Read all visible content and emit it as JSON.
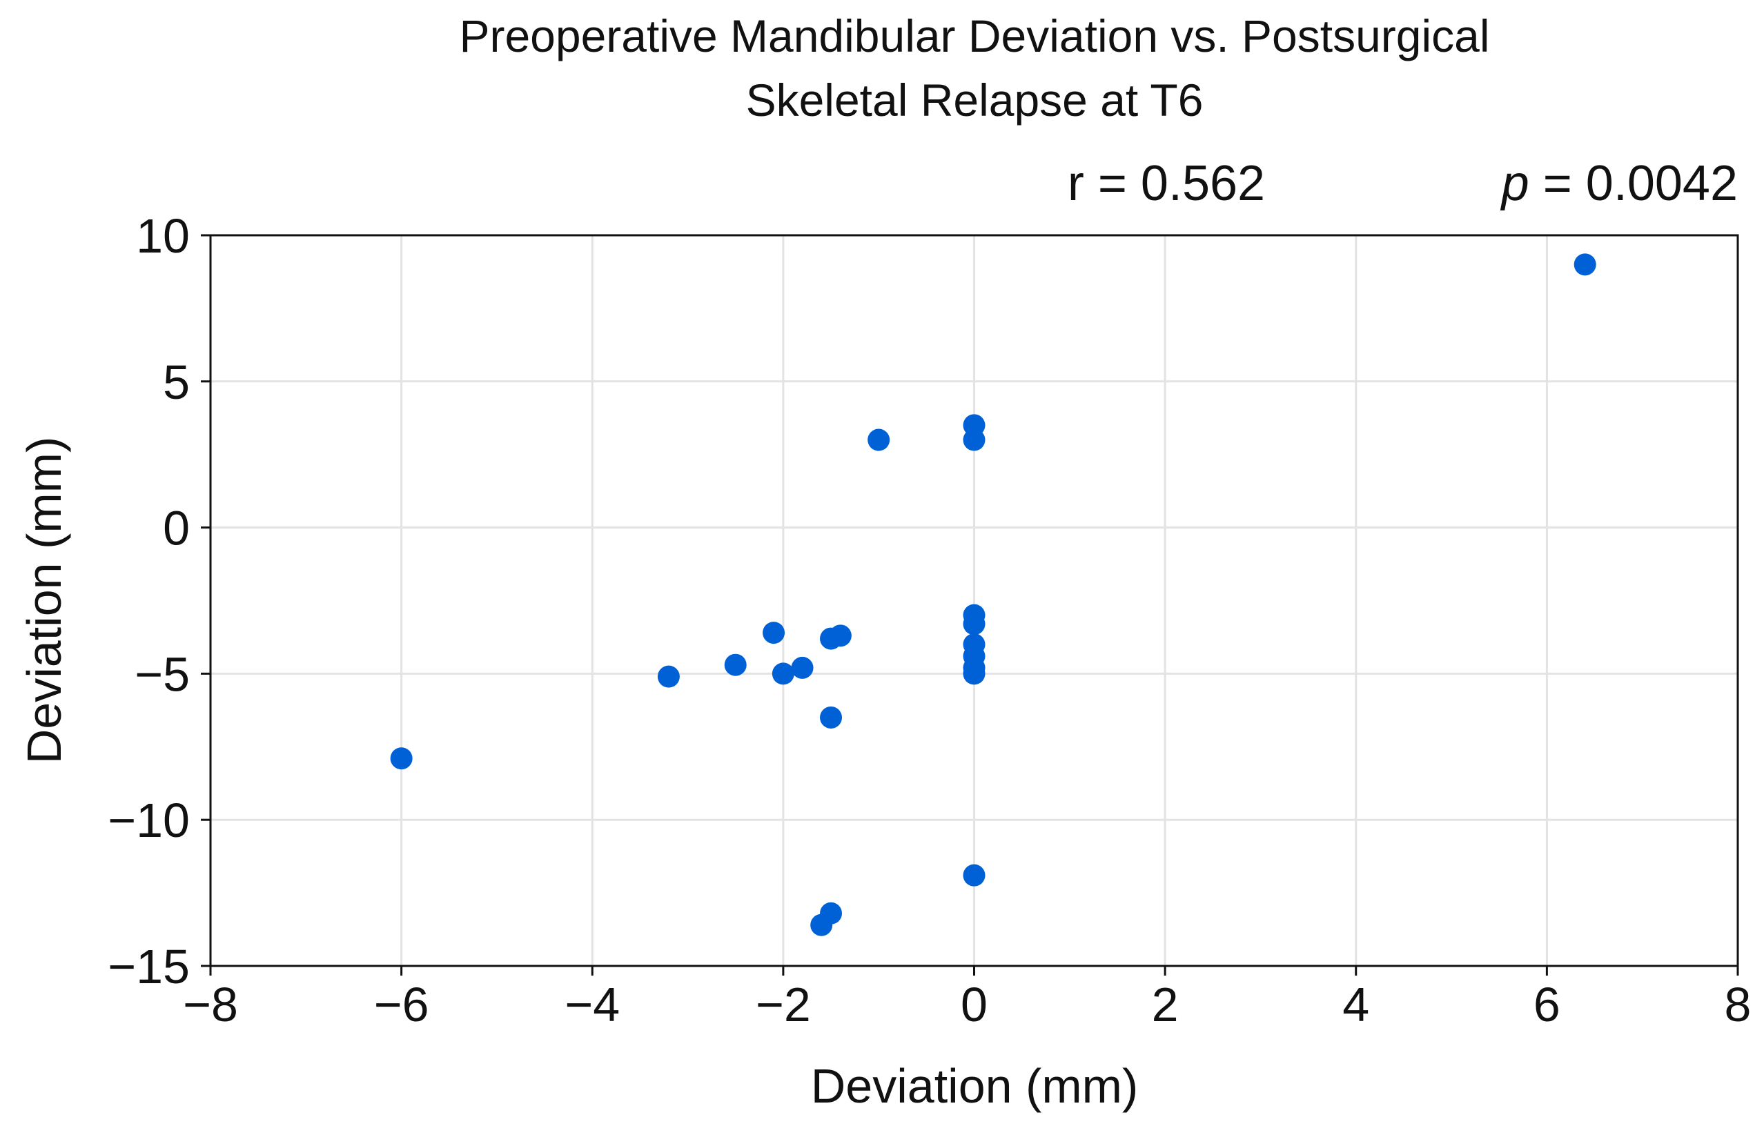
{
  "chart_data": {
    "type": "scatter",
    "title_lines": [
      "Preoperative Mandibular Deviation vs. Postsurgical",
      "Skeletal Relapse at T6"
    ],
    "annotations": {
      "r_label": "r = 0.562",
      "p_symbol": "p",
      "p_value": " = 0.0042"
    },
    "xlabel": "Deviation (mm)",
    "ylabel": "Deviation (mm)",
    "xlim": [
      -8,
      8
    ],
    "ylim": [
      -15,
      10
    ],
    "xticks": [
      -8,
      -6,
      -4,
      -2,
      0,
      2,
      4,
      6,
      8
    ],
    "yticks": [
      10,
      5,
      0,
      -5,
      -10,
      -15
    ],
    "xtick_labels": [
      "−8",
      "−6",
      "−4",
      "−2",
      "0",
      "2",
      "4",
      "6",
      "8"
    ],
    "ytick_labels": [
      "10",
      "5",
      "0",
      "−5",
      "−10",
      "−15"
    ],
    "grid": true,
    "marker_color": "#0060d6",
    "points": [
      [
        6.4,
        9.0
      ],
      [
        -1.0,
        3.0
      ],
      [
        0,
        3.5
      ],
      [
        0,
        3.0
      ],
      [
        -6.0,
        -7.9
      ],
      [
        -3.2,
        -5.1
      ],
      [
        -2.5,
        -4.7
      ],
      [
        -2.1,
        -3.6
      ],
      [
        -2.0,
        -5.0
      ],
      [
        -1.8,
        -4.8
      ],
      [
        -1.5,
        -3.8
      ],
      [
        -1.4,
        -3.7
      ],
      [
        -1.5,
        -6.5
      ],
      [
        0,
        -3.0
      ],
      [
        0,
        -3.3
      ],
      [
        0,
        -4.0
      ],
      [
        0,
        -4.4
      ],
      [
        0,
        -4.8
      ],
      [
        0,
        -5.0
      ],
      [
        0,
        -11.9
      ],
      [
        -1.6,
        -13.6
      ],
      [
        -1.5,
        -13.2
      ]
    ]
  }
}
